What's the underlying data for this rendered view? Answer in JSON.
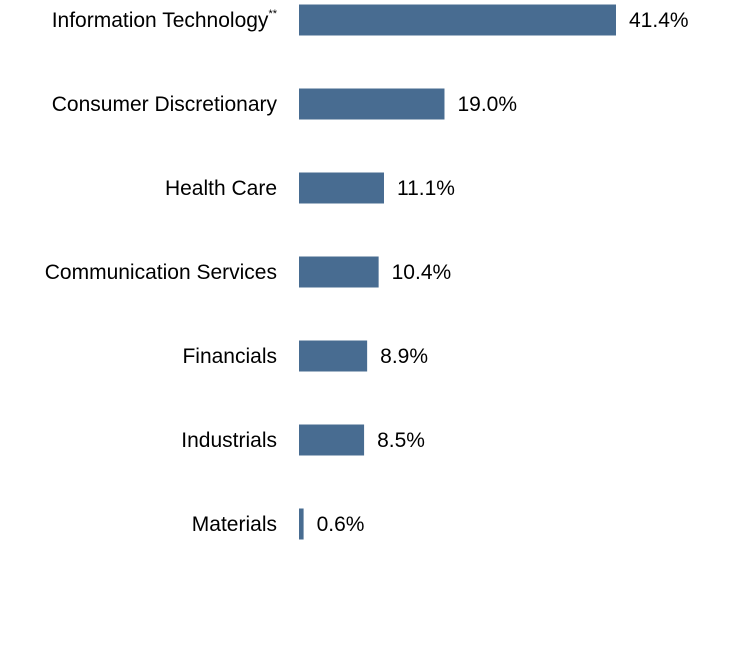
{
  "chart_data": {
    "type": "bar",
    "orientation": "horizontal",
    "categories": [
      "Information Technology",
      "Consumer Discretionary",
      "Health Care",
      "Communication Services",
      "Financials",
      "Industrials",
      "Materials"
    ],
    "category_superscripts": [
      "**",
      "",
      "",
      "",
      "",
      "",
      ""
    ],
    "values": [
      41.4,
      19.0,
      11.1,
      10.4,
      8.9,
      8.5,
      0.6
    ],
    "value_labels": [
      "41.4%",
      "19.0%",
      "11.1%",
      "10.4%",
      "8.9%",
      "8.5%",
      "0.6%"
    ],
    "xlim": [
      0,
      41.4
    ],
    "bar_color": "#486c91",
    "grid": false,
    "legend": "none"
  }
}
